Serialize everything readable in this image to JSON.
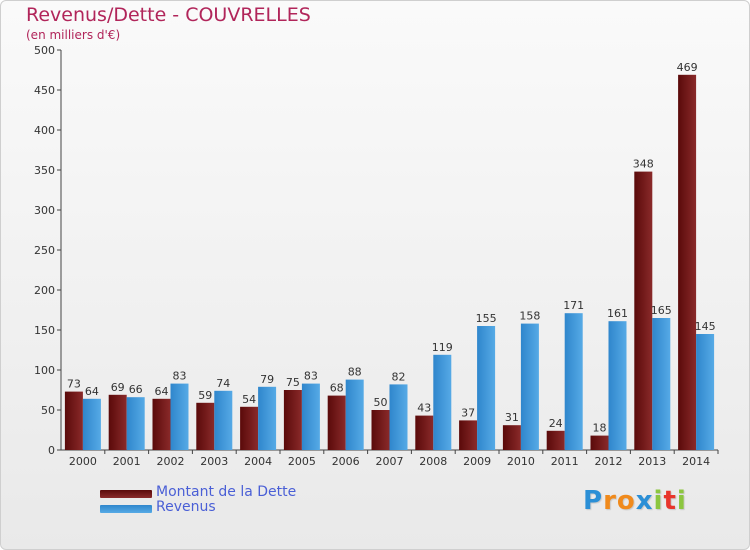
{
  "chart_data": {
    "type": "bar",
    "title": "Revenus/Dette - COUVRELLES",
    "subtitle": "(en milliers d'€)",
    "categories": [
      "2000",
      "2001",
      "2002",
      "2003",
      "2004",
      "2005",
      "2006",
      "2007",
      "2008",
      "2009",
      "2010",
      "2011",
      "2012",
      "2013",
      "2014"
    ],
    "series": [
      {
        "name": "Montant de la Dette",
        "color": "#7a1a1a",
        "values": [
          73,
          69,
          64,
          59,
          54,
          75,
          68,
          50,
          43,
          37,
          31,
          24,
          18,
          348,
          469
        ]
      },
      {
        "name": "Revenus",
        "color": "#3f97db",
        "values": [
          64,
          66,
          83,
          74,
          79,
          83,
          88,
          82,
          119,
          155,
          158,
          171,
          161,
          165,
          145
        ]
      }
    ],
    "ylim": [
      0,
      500
    ],
    "yticks": [
      0,
      50,
      100,
      150,
      200,
      250,
      300,
      350,
      400,
      450,
      500
    ],
    "grid": false,
    "legend_position": "bottom-left"
  },
  "logo": {
    "letters": [
      "P",
      "r",
      "o",
      "x",
      "i",
      "t",
      "i"
    ],
    "colors": [
      "#2b8fd6",
      "#f08a1c",
      "#f08a1c",
      "#2b8fd6",
      "#8cc63f",
      "#e8352b",
      "#8cc63f"
    ]
  }
}
